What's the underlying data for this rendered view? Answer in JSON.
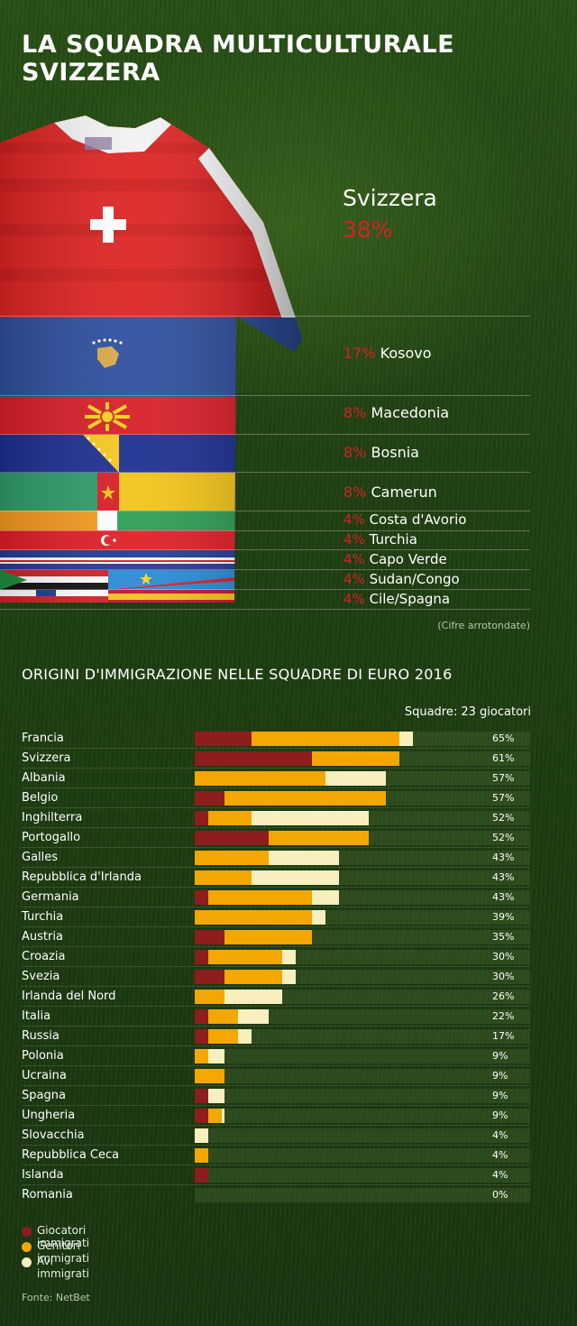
{
  "title": "LA SQUADRA MULTICULTURALE SVIZZERA",
  "shirt_breakdown": {
    "main": {
      "country": "Svizzera",
      "pct": "38%"
    },
    "items": [
      {
        "pct": "17%",
        "country": "Kosovo"
      },
      {
        "pct": "8%",
        "country": "Macedonia"
      },
      {
        "pct": "8%",
        "country": "Bosnia"
      },
      {
        "pct": "8%",
        "country": "Camerun"
      },
      {
        "pct": "4%",
        "country": "Costa d'Avorio"
      },
      {
        "pct": "4%",
        "country": "Turchia"
      },
      {
        "pct": "4%",
        "country": "Capo Verde"
      },
      {
        "pct": "4%",
        "country": "Sudan/Congo"
      },
      {
        "pct": "4%",
        "country": "Cile/Spagna"
      }
    ],
    "note": "(Cifre arrotondate)"
  },
  "section_title": "ORIGINI D'IMMIGRAZIONE NELLE SQUADRE DI EURO 2016",
  "squad_note": "Squadre: 23 giocatori",
  "colors": {
    "players": "#8e1d1d",
    "parents": "#f4a700",
    "grandparents": "#f8efbe",
    "accent_red": "#d42226"
  },
  "chart_data": {
    "type": "bar",
    "orientation": "horizontal",
    "stacked": true,
    "xlim": [
      0,
      100
    ],
    "categories": [
      "Francia",
      "Svizzera",
      "Albania",
      "Belgio",
      "Inghilterra",
      "Portogallo",
      "Galles",
      "Repubblica d'Irlanda",
      "Germania",
      "Turchia",
      "Austria",
      "Croazia",
      "Svezia",
      "Irlanda del Nord",
      "Italia",
      "Russia",
      "Polonia",
      "Ucraina",
      "Spagna",
      "Ungheria",
      "Slovacchia",
      "Repubblica Ceca",
      "Islanda",
      "Romania"
    ],
    "series": [
      {
        "name": "Giocatori immigrati",
        "values": [
          17,
          35,
          0,
          9,
          4,
          22,
          0,
          0,
          4,
          0,
          9,
          4,
          9,
          0,
          4,
          4,
          0,
          0,
          4,
          4,
          0,
          0,
          4,
          0
        ]
      },
      {
        "name": "Genitori immigrati",
        "values": [
          44,
          26,
          39,
          48,
          13,
          30,
          22,
          17,
          31,
          35,
          26,
          22,
          17,
          9,
          9,
          9,
          4,
          9,
          0,
          4,
          0,
          4,
          0,
          0
        ]
      },
      {
        "name": "Avi immigrati",
        "values": [
          4,
          0,
          18,
          0,
          35,
          0,
          21,
          26,
          8,
          4,
          0,
          4,
          4,
          17,
          9,
          4,
          5,
          0,
          5,
          1,
          4,
          0,
          0,
          0
        ]
      }
    ],
    "totals": [
      "65%",
      "61%",
      "57%",
      "57%",
      "52%",
      "52%",
      "43%",
      "43%",
      "43%",
      "39%",
      "35%",
      "30%",
      "30%",
      "26%",
      "22%",
      "17%",
      "9%",
      "9%",
      "9%",
      "9%",
      "4%",
      "4%",
      "4%",
      "0%"
    ],
    "legend": [
      "Giocatori immigrati",
      "Genitori immigrati",
      "Avi immigrati"
    ],
    "legend_position": "bottom-left"
  },
  "source": "Fonte: NetBet"
}
